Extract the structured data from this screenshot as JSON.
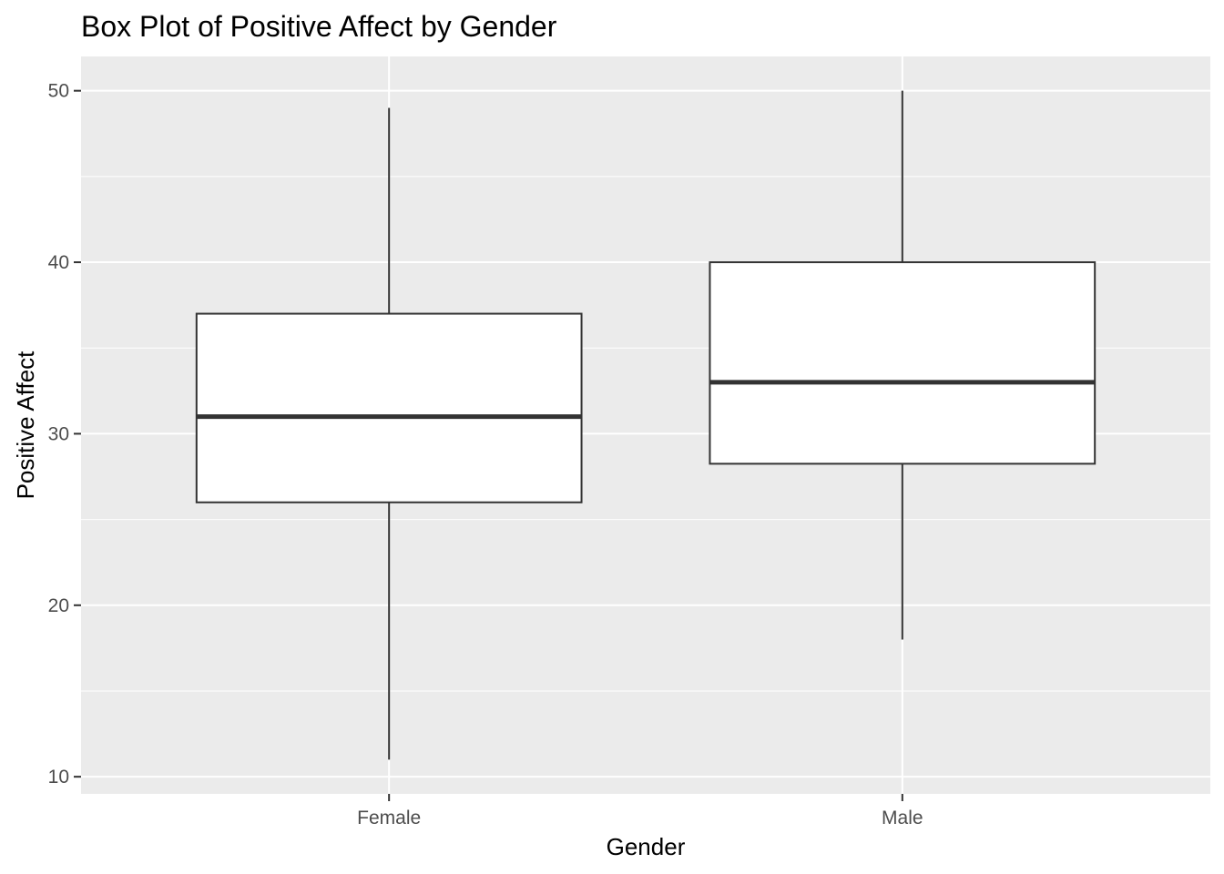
{
  "chart_data": {
    "type": "box",
    "title": "Box Plot of Positive Affect by Gender",
    "xlabel": "Gender",
    "ylabel": "Positive Affect",
    "categories": [
      "Female",
      "Male"
    ],
    "boxes": [
      {
        "category": "Female",
        "min": 11,
        "q1": 26,
        "median": 31,
        "q3": 37,
        "max": 49
      },
      {
        "category": "Male",
        "min": 18,
        "q1": 28.25,
        "median": 33,
        "q3": 40,
        "max": 50
      }
    ],
    "ylim": [
      9,
      52
    ],
    "yticks": [
      10,
      20,
      30,
      40,
      50
    ],
    "grid": true,
    "colors": {
      "panel": "#ebebeb",
      "grid": "#ffffff",
      "box_fill": "#ffffff",
      "box_line": "#333333",
      "tick": "#333333"
    }
  }
}
